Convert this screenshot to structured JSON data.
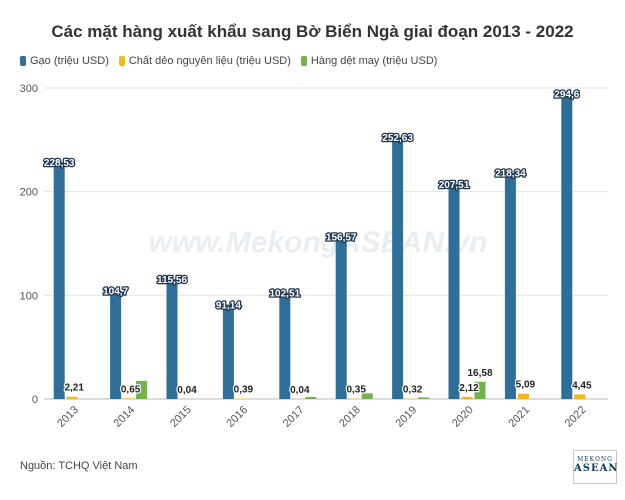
{
  "title": "Các mặt hàng xuất khẩu sang Bờ Biển Ngà giai đoạn 2013 - 2022",
  "watermark": "www.MekongASEAN.vn",
  "source": "Nguồn: TCHQ Việt Nam",
  "logo": {
    "line1": "MEKONG",
    "line2": "ASEAN"
  },
  "colors": {
    "gao": "#2e6f9a",
    "chat_deo": "#f2b81b",
    "hang_det_may": "#73b349"
  },
  "chart_data": {
    "type": "bar",
    "title": "Các mặt hàng xuất khẩu sang Bờ Biển Ngà giai đoạn 2013 - 2022",
    "categories": [
      "2013",
      "2014",
      "2015",
      "2016",
      "2017",
      "2018",
      "2019",
      "2020",
      "2021",
      "2022"
    ],
    "ylim": [
      0,
      300
    ],
    "yticks": [
      0,
      100,
      200,
      300
    ],
    "grid": true,
    "legend_position": "top-left",
    "series": [
      {
        "name": "Gạo (triệu USD)",
        "values": [
          228.53,
          104.7,
          115.56,
          91.14,
          102.51,
          156.57,
          252.63,
          207.51,
          218.34,
          294.6
        ],
        "labels": [
          "228,53",
          "104,7",
          "115,56",
          "91,14",
          "102,51",
          "156,57",
          "252,63",
          "207,51",
          "218,34",
          "294,6"
        ]
      },
      {
        "name": "Chất dẻo nguyên liệu (triệu USD)",
        "values": [
          2.21,
          0.65,
          0.04,
          0.39,
          0.04,
          0.35,
          0.32,
          2.12,
          5.09,
          4.45
        ],
        "labels": [
          "2,21",
          "0,65",
          "0,04",
          "0,39",
          "0,04",
          "0,35",
          "0,32",
          "2,12",
          "5,09",
          "4,45"
        ]
      },
      {
        "name": "Hàng dệt may (triệu USD)",
        "values": [
          0,
          17.5,
          0,
          0,
          2.0,
          5.5,
          1.5,
          16.58,
          0,
          0
        ],
        "labels": [
          "",
          "",
          "",
          "",
          "",
          "",
          "",
          "16,58",
          "",
          ""
        ]
      }
    ]
  }
}
